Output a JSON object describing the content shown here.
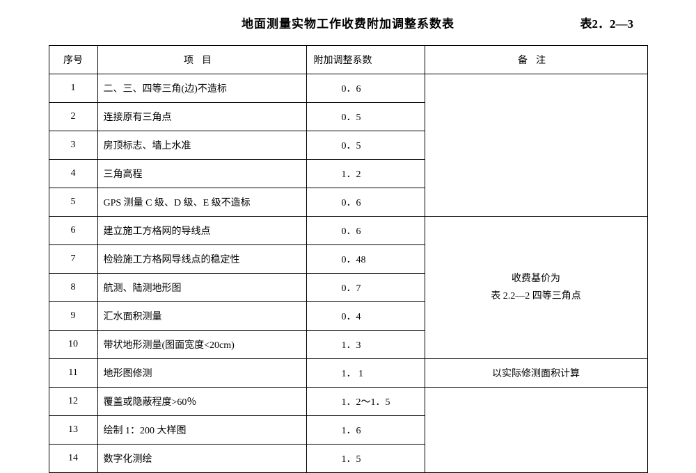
{
  "title": "地面测量实物工作收费附加调整系数表",
  "table_label": "表2．2—3",
  "headers": {
    "seq": "序号",
    "item": "项目",
    "coef": "附加调整系数",
    "remark": "备注"
  },
  "rows": [
    {
      "seq": "1",
      "item": "二、三、四等三角(边)不造标",
      "coef": "0．6"
    },
    {
      "seq": "2",
      "item": "连接原有三角点",
      "coef": "0．5"
    },
    {
      "seq": "3",
      "item": "房顶标志、墙上水准",
      "coef": "0．5"
    },
    {
      "seq": "4",
      "item": "三角高程",
      "coef": "1．2"
    },
    {
      "seq": "5",
      "item": "GPS 测量 C 级、D 级、E 级不造标",
      "coef": "0．6"
    },
    {
      "seq": "6",
      "item": "建立施工方格网的导线点",
      "coef": "0．6"
    },
    {
      "seq": "7",
      "item": "检验施工方格网导线点的稳定性",
      "coef": "0．48"
    },
    {
      "seq": "8",
      "item": "航测、陆测地形图",
      "coef": "0．7"
    },
    {
      "seq": "9",
      "item": "汇水面积测量",
      "coef": "0．4"
    },
    {
      "seq": "10",
      "item": "带状地形测量(图面宽度<20cm)",
      "coef": "1．3"
    },
    {
      "seq": "11",
      "item": "地形图修测",
      "coef": "1． 1"
    },
    {
      "seq": "12",
      "item": "覆盖或隐蔽程度>60％",
      "coef": "1．2～1．5"
    },
    {
      "seq": "13",
      "item": "绘制 1：200 大样图",
      "coef": "1．6"
    },
    {
      "seq": "14",
      "item": "数字化测绘",
      "coef": "1．5"
    }
  ],
  "remarks": {
    "group1": "",
    "group2_line1": "收费基价为",
    "group2_line2": "表 2.2—2 四等三角点",
    "group3": "以实际修测面积计算",
    "group4": ""
  }
}
